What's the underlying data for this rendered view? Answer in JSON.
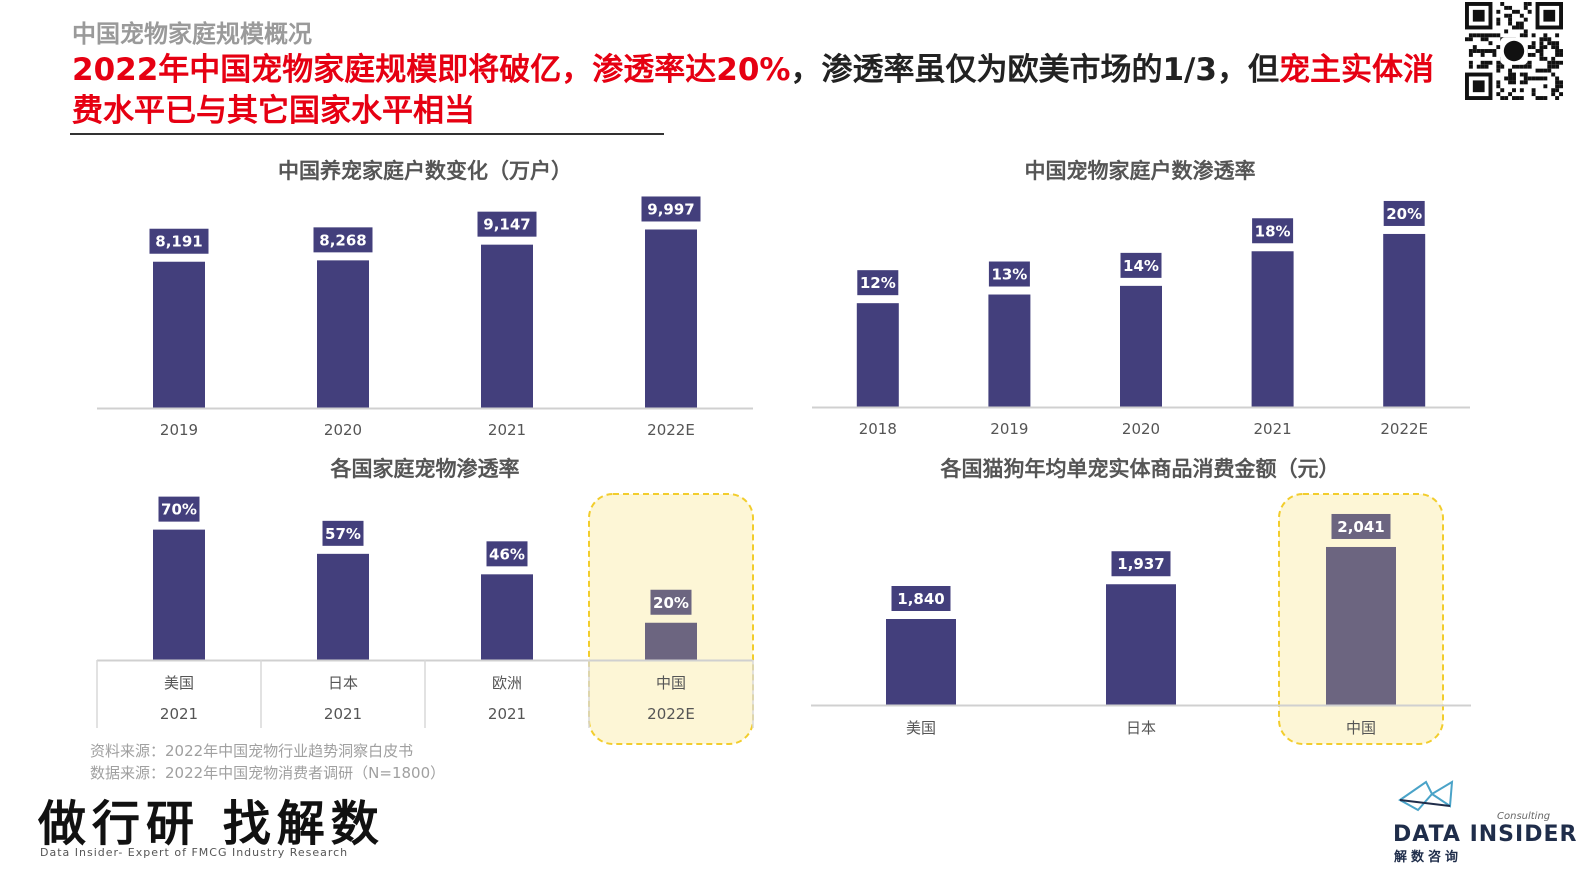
{
  "header": {
    "section_label": "中国宠物家庭规模概况",
    "headline_parts": [
      {
        "text": "2022年中国宠物家庭规模即将破亿，渗透率达20%",
        "color": "red"
      },
      {
        "text": "，渗透率虽仅为欧美市场的1/3，但",
        "color": "black"
      },
      {
        "text": "宠主实体消费水平已与其它国家水平相当",
        "color": "red"
      }
    ]
  },
  "colors": {
    "bar": "#433f7c",
    "highlight_bar": "#6c6580",
    "highlight_fill": "#fdf6d6",
    "highlight_border": "#f2cd2d",
    "accent_red": "#e60012"
  },
  "chart_data": [
    {
      "type": "bar",
      "title": "中国养宠家庭户数变化（万户）",
      "categories": [
        "2019",
        "2020",
        "2021",
        "2022E"
      ],
      "values": [
        8191,
        8268,
        9147,
        9997
      ],
      "data_labels": [
        "8,191",
        "8,268",
        "9,147",
        "9,997"
      ],
      "ylim": [
        0,
        11200
      ],
      "grid": false
    },
    {
      "type": "bar",
      "title": "中国宠物家庭户数渗透率",
      "categories": [
        "2018",
        "2019",
        "2020",
        "2021",
        "2022E"
      ],
      "values": [
        12,
        13,
        14,
        18,
        20
      ],
      "data_labels": [
        "12%",
        "13%",
        "14%",
        "18%",
        "20%"
      ],
      "ylim": [
        0,
        23
      ],
      "grid": false
    },
    {
      "type": "bar",
      "title": "各国家庭宠物渗透率",
      "categories": [
        [
          "美国",
          "2021"
        ],
        [
          "日本",
          "2021"
        ],
        [
          "欧洲",
          "2021"
        ],
        [
          "中国",
          "2022E"
        ]
      ],
      "values": [
        70,
        57,
        46,
        20
      ],
      "data_labels": [
        "70%",
        "57%",
        "46%",
        "20%"
      ],
      "highlight_index": 3,
      "ylim": [
        0,
        80
      ],
      "grid": false
    },
    {
      "type": "bar",
      "title": "各国猫狗年均单宠实体商品消费金额（元）",
      "categories": [
        "美国",
        "日本",
        "中国"
      ],
      "values": [
        1840,
        1937,
        2041
      ],
      "data_labels": [
        "1,840",
        "1,937",
        "2,041"
      ],
      "highlight_index": 2,
      "ylim": [
        1600,
        2080
      ],
      "grid": false
    }
  ],
  "footer": {
    "source_1": "资料来源：2022年中国宠物行业趋势洞察白皮书",
    "source_2": "数据来源：2022年中国宠物消费者调研（N=1800）",
    "slogan": "做行研 找解数",
    "slogan_sub": "Data Insider- Expert of FMCG Industry Research"
  },
  "brand": {
    "consulting": "Consulting",
    "name": "DATA INSIDER",
    "cn": "解数咨询"
  },
  "icons": {
    "qr": "qr-code-icon",
    "brand_logo": "data-insider-logo-icon"
  }
}
